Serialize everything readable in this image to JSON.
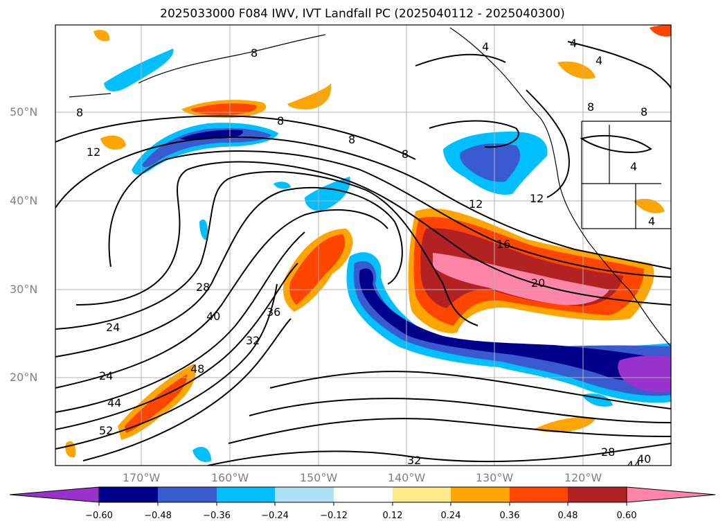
{
  "title": "2025033000 F084 IWV, IVT Landfall PC (2025040112 - 2025040300)",
  "lon_ticks": [
    "170°W",
    "160°W",
    "150°W",
    "140°W",
    "130°W",
    "120°W"
  ],
  "lat_ticks": [
    "50°N",
    "40°N",
    "30°N",
    "20°N"
  ],
  "colorbar": {
    "labels": [
      "−0.60",
      "−0.48",
      "−0.36",
      "−0.24",
      "−0.12",
      "0.12",
      "0.24",
      "0.36",
      "0.48",
      "0.60"
    ],
    "colors": [
      "#9932cc",
      "#00008b",
      "#3a5bd0",
      "#00bfff",
      "#aee0f8",
      "#ffffff",
      "#fde98a",
      "#ffa500",
      "#ff4500",
      "#b22222",
      "#ff85a8"
    ]
  },
  "contour_labels": [
    "8",
    "8",
    "8",
    "8",
    "12",
    "12",
    "12",
    "16",
    "20",
    "24",
    "24",
    "28",
    "32",
    "36",
    "40",
    "44",
    "48",
    "52",
    "4",
    "4",
    "4",
    "4",
    "4",
    "8",
    "8",
    "8",
    "32",
    "40",
    "44",
    "28"
  ],
  "colors": {
    "frame": "#000000",
    "grid": "#b0b0b0",
    "tick_text": "#808080"
  }
}
